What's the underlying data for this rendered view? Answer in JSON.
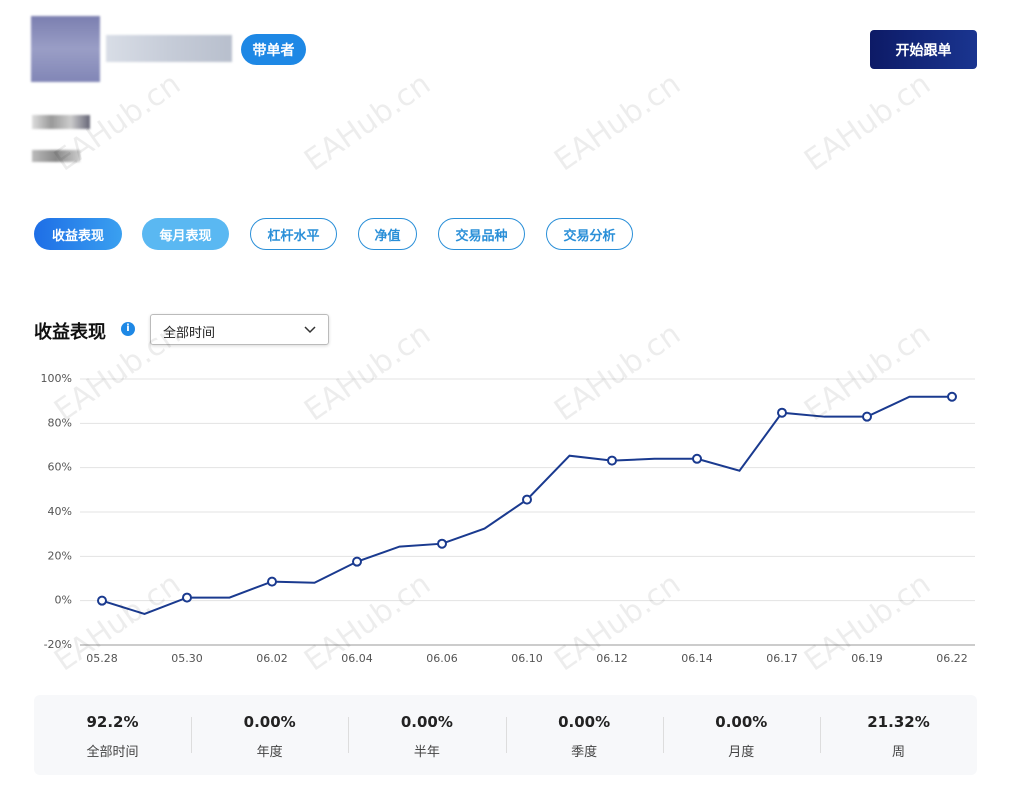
{
  "header": {
    "badge": "带单者",
    "button": "开始跟单"
  },
  "tabs": [
    "收益表现",
    "每月表现",
    "杠杆水平",
    "净值",
    "交易品种",
    "交易分析"
  ],
  "watermark": "EAHub.cn",
  "dropdown": "全部时间",
  "chart_data": {
    "type": "line",
    "title": "收益表现",
    "categories": [
      "05.28",
      null,
      "05.30",
      null,
      "06.02",
      null,
      "06.04",
      null,
      "06.06",
      null,
      "06.10",
      null,
      "06.12",
      null,
      "06.14",
      null,
      "06.17",
      null,
      "06.19",
      null,
      "06.22"
    ],
    "values": [
      0,
      -6,
      1.4,
      1.4,
      8.6,
      8.1,
      17.6,
      24.4,
      25.7,
      32.5,
      45.6,
      65.4,
      63.2,
      64,
      64,
      58.6,
      84.8,
      83,
      83,
      92,
      92
    ],
    "color": "#1a3a8f",
    "ylim": [
      -20,
      100
    ],
    "yticks": [
      {
        "value": -20,
        "label": "-20%"
      },
      {
        "value": 0,
        "label": "0%"
      },
      {
        "value": 20,
        "label": "20%"
      },
      {
        "value": 40,
        "label": "40%"
      },
      {
        "value": 60,
        "label": "60%"
      },
      {
        "value": 80,
        "label": "80%"
      },
      {
        "value": 100,
        "label": "100%"
      }
    ],
    "grid": true
  },
  "stats": [
    {
      "value": "92.2%",
      "label": "全部时间"
    },
    {
      "value": "0.00%",
      "label": "年度"
    },
    {
      "value": "0.00%",
      "label": "半年"
    },
    {
      "value": "0.00%",
      "label": "季度"
    },
    {
      "value": "0.00%",
      "label": "月度"
    },
    {
      "value": "21.32%",
      "label": "周"
    }
  ]
}
